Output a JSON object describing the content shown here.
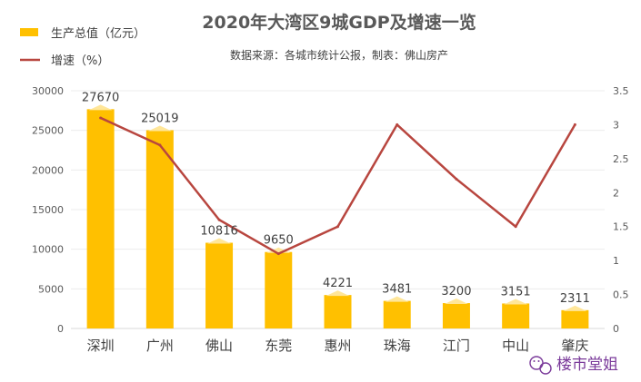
{
  "chart_data": {
    "type": "bar",
    "title": "2020年大湾区9城GDP及增速一览",
    "subtitle": "数据来源：各城市统计公报，制表：佛山房产",
    "categories": [
      "深圳",
      "广州",
      "佛山",
      "东莞",
      "惠州",
      "珠海",
      "江门",
      "中山",
      "肇庆"
    ],
    "series": [
      {
        "name": "生产总值（亿元）",
        "type": "bar",
        "axis": "left",
        "color": "#FFC000",
        "values": [
          27670,
          25019,
          10816,
          9650,
          4221,
          3481,
          3200,
          3151,
          2311
        ],
        "labels": [
          "27670",
          "25019",
          "10816",
          "9650",
          "4221",
          "3481",
          "3200",
          "3151",
          "2311"
        ]
      },
      {
        "name": "增速（%）",
        "type": "line",
        "axis": "right",
        "color": "#B8463F",
        "values": [
          3.1,
          2.7,
          1.6,
          1.1,
          1.5,
          3.0,
          2.2,
          1.5,
          3.0
        ]
      }
    ],
    "ylim": [
      0,
      30000
    ],
    "yticks": [
      "0",
      "5000",
      "10000",
      "15000",
      "20000",
      "25000",
      "30000"
    ],
    "y2lim": [
      0,
      3.5
    ],
    "y2ticks": [
      "0",
      "0.5",
      "1",
      "1.5",
      "2",
      "2.5",
      "3",
      "3.5"
    ],
    "grid": true,
    "legend": "top-left"
  },
  "watermark": {
    "text": "楼市堂姐",
    "icon": "wechat-icon",
    "color": "#7a3a9a"
  }
}
